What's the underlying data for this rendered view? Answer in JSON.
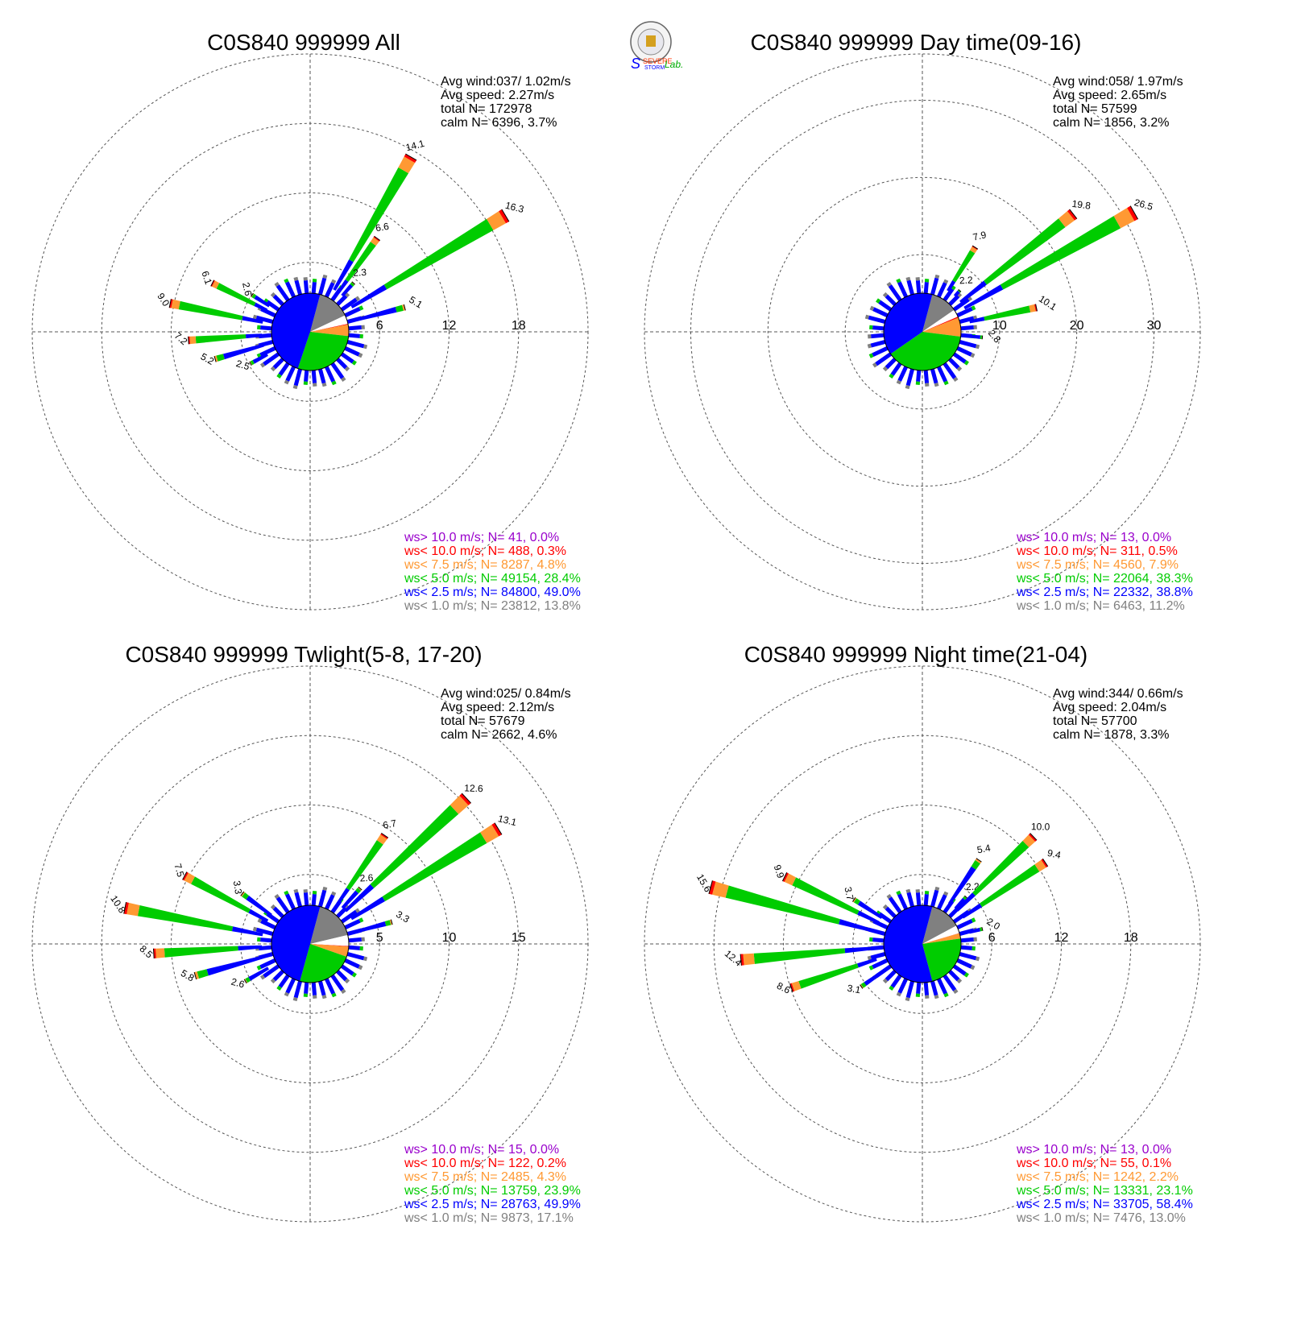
{
  "colors": {
    "gt10": "#9900cc",
    "lt10": "#ff0000",
    "lt7_5": "#ff9933",
    "lt5": "#00cc00",
    "lt2_5": "#0000ff",
    "lt1": "#808080",
    "calm": "#ffffff"
  },
  "logo": {
    "text1": "SEVERE",
    "text2": "STORM",
    "text3": "Lab."
  },
  "chart_data": [
    {
      "type": "windrose",
      "title": "C0S840 999999 All",
      "stats": [
        "Avg wind:037/ 1.02m/s",
        "Avg speed: 2.27m/s",
        "total N=     172978",
        "calm N=   6396,   3.7%"
      ],
      "rings": [
        "6",
        "12",
        "18"
      ],
      "rmax": 24,
      "bars": [
        {
          "dir": 30.0,
          "total": 14.1,
          "label": "14.1"
        },
        {
          "dir": 35.6,
          "total": 6.6,
          "label": "6.6"
        },
        {
          "dir": 41.6,
          "total": 2.3,
          "label": "2.3"
        },
        {
          "dir": 59.2,
          "total": 16.3,
          "label": "16.3"
        },
        {
          "dir": 75.5,
          "total": 5.1,
          "label": "5.1"
        },
        {
          "dir": 281.5,
          "total": 9.0,
          "label": "9.0"
        },
        {
          "dir": 296.5,
          "total": 6.1,
          "label": "6.1"
        },
        {
          "dir": 302.4,
          "total": 2.6,
          "label": "2.6"
        },
        {
          "dir": 266.0,
          "total": 7.2,
          "label": "7.2"
        },
        {
          "dir": 254.0,
          "total": 5.2,
          "label": "5.2"
        },
        {
          "dir": 242.0,
          "total": 2.5,
          "label": "2.5"
        }
      ],
      "pie": [
        49.0,
        28.4,
        4.8,
        0.3,
        0.0,
        13.8,
        3.7
      ],
      "legend": [
        "ws> 10.0 m/s; N=    41,  0.0%",
        "ws< 10.0 m/s; N=   488,  0.3%",
        "ws<  7.5 m/s; N=  8287,  4.8%",
        "ws<  5.0 m/s; N= 49154, 28.4%",
        "ws<  2.5 m/s; N= 84800, 49.0%",
        "ws<  1.0 m/s; N= 23812, 13.8%"
      ]
    },
    {
      "type": "windrose",
      "title": "C0S840 999999 Day time(09-16)",
      "stats": [
        "Avg wind:058/ 1.97m/s",
        "Avg speed: 2.65m/s",
        "total N=       57599",
        "calm N=   1856,   3.2%"
      ],
      "rings": [
        "10",
        "20",
        "30"
      ],
      "rmax": 36,
      "bars": [
        {
          "dir": 32.0,
          "total": 7.9,
          "label": "7.9"
        },
        {
          "dir": 42.2,
          "total": 2.2,
          "label": "2.2"
        },
        {
          "dir": 52.0,
          "total": 19.8,
          "label": "19.8"
        },
        {
          "dir": 60.6,
          "total": 26.5,
          "label": "26.5"
        },
        {
          "dir": 78.0,
          "total": 10.1,
          "label": "10.1"
        },
        {
          "dir": 95.3,
          "total": 2.8,
          "label": "2.8"
        }
      ],
      "pie": [
        38.8,
        38.3,
        7.9,
        0.5,
        0.0,
        11.2,
        3.2
      ],
      "legend": [
        "ws> 10.0 m/s; N=    13,  0.0%",
        "ws< 10.0 m/s; N=   311,  0.5%",
        "ws<  7.5 m/s; N=  4560,  7.9%",
        "ws<  5.0 m/s; N= 22064, 38.3%",
        "ws<  2.5 m/s; N= 22332, 38.8%",
        "ws<  1.0 m/s; N=  6463, 11.2%"
      ]
    },
    {
      "type": "windrose",
      "title": "C0S840 999999 Twlight(5-8, 17-20)",
      "stats": [
        "Avg wind:025/ 0.84m/s",
        "Avg speed: 2.12m/s",
        "total N=       57679",
        "calm N=   2662,   4.6%"
      ],
      "rings": [
        "5",
        "10",
        "15"
      ],
      "rmax": 20,
      "bars": [
        {
          "dir": 34.5,
          "total": 6.7,
          "label": "6.7"
        },
        {
          "dir": 42.0,
          "total": 2.6,
          "label": "2.6"
        },
        {
          "dir": 47.0,
          "total": 12.6,
          "label": "12.6"
        },
        {
          "dir": 58.5,
          "total": 13.1,
          "label": "13.1"
        },
        {
          "dir": 75.0,
          "total": 3.3,
          "label": "3.3"
        },
        {
          "dir": 281.0,
          "total": 10.8,
          "label": "10.8"
        },
        {
          "dir": 298.5,
          "total": 7.5,
          "label": "7.5"
        },
        {
          "dir": 306.5,
          "total": 3.3,
          "label": "3.3"
        },
        {
          "dir": 266.5,
          "total": 8.5,
          "label": "8.5"
        },
        {
          "dir": 254.5,
          "total": 5.8,
          "label": "5.8"
        },
        {
          "dir": 240.0,
          "total": 2.6,
          "label": "2.6"
        }
      ],
      "pie": [
        49.9,
        23.9,
        4.3,
        0.2,
        0.0,
        17.1,
        4.6
      ],
      "legend": [
        "ws> 10.0 m/s; N=    15,  0.0%",
        "ws< 10.0 m/s; N=   122,  0.2%",
        "ws<  7.5 m/s; N=  2485,  4.3%",
        "ws<  5.0 m/s; N= 13759, 23.9%",
        "ws<  2.5 m/s; N= 28763, 49.9%",
        "ws<  1.0 m/s; N=  9873, 17.1%"
      ]
    },
    {
      "type": "windrose",
      "title": "C0S840 999999 Night time(21-04)",
      "stats": [
        "Avg wind:344/ 0.66m/s",
        "Avg speed: 2.04m/s",
        "total N=       57700",
        "calm N=   1878,   3.3%"
      ],
      "rings": [
        "6",
        "12",
        "18"
      ],
      "rmax": 24,
      "bars": [
        {
          "dir": 34.0,
          "total": 5.4,
          "label": "5.4"
        },
        {
          "dir": 43.0,
          "total": 2.2,
          "label": "2.2"
        },
        {
          "dir": 46.0,
          "total": 10.0,
          "label": "10.0"
        },
        {
          "dir": 56.5,
          "total": 9.4,
          "label": "9.4"
        },
        {
          "dir": 76.0,
          "total": 2.0,
          "label": "2.0"
        },
        {
          "dir": 285.0,
          "total": 15.6,
          "label": "15.6"
        },
        {
          "dir": 296.0,
          "total": 9.9,
          "label": "9.9"
        },
        {
          "dir": 303.0,
          "total": 3.7,
          "label": "3.7"
        },
        {
          "dir": 265.0,
          "total": 12.4,
          "label": "12.4"
        },
        {
          "dir": 251.5,
          "total": 8.6,
          "label": "8.6"
        },
        {
          "dir": 235.0,
          "total": 3.1,
          "label": "3.1"
        }
      ],
      "pie": [
        58.4,
        23.1,
        2.2,
        0.1,
        0.0,
        13.0,
        3.3
      ],
      "legend": [
        "ws> 10.0 m/s; N=    13,  0.0%",
        "ws< 10.0 m/s; N=    55,  0.1%",
        "ws<  7.5 m/s; N=  1242,  2.2%",
        "ws<  5.0 m/s; N= 13331, 23.1%",
        "ws<  2.5 m/s; N= 33705, 58.4%",
        "ws<  1.0 m/s; N=  7476, 13.0%"
      ]
    }
  ]
}
